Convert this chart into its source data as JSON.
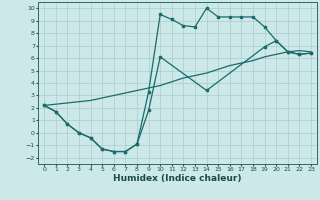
{
  "title": "",
  "xlabel": "Humidex (Indice chaleur)",
  "bg_color": "#cce8e8",
  "grid_color": "#aacccc",
  "line_color": "#1a6b6b",
  "xlim": [
    -0.5,
    23.5
  ],
  "ylim": [
    -2.5,
    10.5
  ],
  "xticks": [
    0,
    1,
    2,
    3,
    4,
    5,
    6,
    7,
    8,
    9,
    10,
    11,
    12,
    13,
    14,
    15,
    16,
    17,
    18,
    19,
    20,
    21,
    22,
    23
  ],
  "yticks": [
    -2,
    -1,
    0,
    1,
    2,
    3,
    4,
    5,
    6,
    7,
    8,
    9,
    10
  ],
  "line1_x": [
    0,
    1,
    2,
    3,
    4,
    5,
    6,
    7,
    8,
    9,
    10,
    11,
    12,
    13,
    14,
    15,
    16,
    17,
    18,
    19,
    20,
    21,
    22,
    23
  ],
  "line1_y": [
    2.2,
    1.7,
    0.7,
    0.0,
    -0.4,
    -1.3,
    -1.5,
    -1.5,
    -0.9,
    3.3,
    9.5,
    9.1,
    8.6,
    8.5,
    10.0,
    9.3,
    9.3,
    9.3,
    9.3,
    8.5,
    7.4,
    6.5,
    6.3,
    6.4
  ],
  "line2_x": [
    0,
    1,
    2,
    3,
    4,
    5,
    6,
    7,
    8,
    9,
    10,
    14,
    19,
    20,
    21,
    22,
    23
  ],
  "line2_y": [
    2.2,
    1.7,
    0.7,
    0.0,
    -0.4,
    -1.3,
    -1.5,
    -1.5,
    -0.9,
    1.8,
    6.1,
    3.4,
    6.9,
    7.4,
    6.5,
    6.3,
    6.4
  ],
  "line3_x": [
    0,
    1,
    2,
    3,
    4,
    5,
    6,
    7,
    8,
    9,
    10,
    11,
    12,
    13,
    14,
    15,
    16,
    17,
    18,
    19,
    20,
    21,
    22,
    23
  ],
  "line3_y": [
    2.2,
    2.3,
    2.4,
    2.5,
    2.6,
    2.8,
    3.0,
    3.2,
    3.4,
    3.6,
    3.8,
    4.1,
    4.4,
    4.6,
    4.8,
    5.1,
    5.4,
    5.6,
    5.8,
    6.1,
    6.3,
    6.5,
    6.6,
    6.5
  ]
}
